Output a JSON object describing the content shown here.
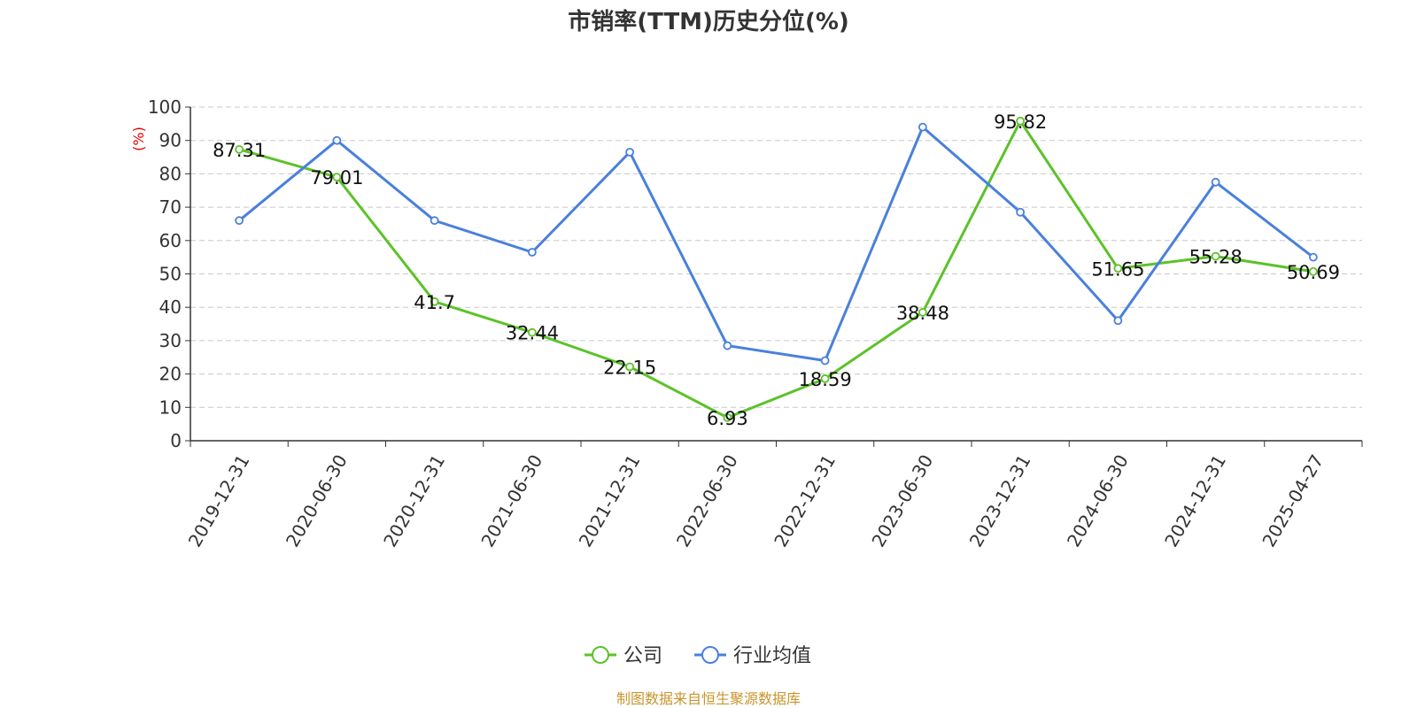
{
  "chart_data": {
    "type": "line",
    "title": "市销率(TTM)历史分位(%)",
    "ylabel": "(%)",
    "ylim": [
      0,
      100
    ],
    "yticks": [
      0,
      10,
      20,
      30,
      40,
      50,
      60,
      70,
      80,
      90,
      100
    ],
    "grid": true,
    "legend_position": "bottom-center",
    "categories": [
      "2019-12-31",
      "2020-06-30",
      "2020-12-31",
      "2021-06-30",
      "2021-12-31",
      "2022-06-30",
      "2022-12-31",
      "2023-06-30",
      "2023-12-31",
      "2024-06-30",
      "2024-12-31",
      "2025-04-27"
    ],
    "series": [
      {
        "name": "公司",
        "color": "#5cc229",
        "show_labels": true,
        "values": [
          87.31,
          79.01,
          41.7,
          32.44,
          22.15,
          6.93,
          18.59,
          38.48,
          95.82,
          51.65,
          55.28,
          50.69
        ]
      },
      {
        "name": "行业均值",
        "color": "#4a80dc",
        "show_labels": false,
        "values": [
          66,
          90,
          66,
          56.5,
          86.5,
          28.5,
          24,
          94,
          68.5,
          36,
          77.5,
          55
        ]
      }
    ]
  },
  "source": "制图数据来自恒生聚源数据库"
}
